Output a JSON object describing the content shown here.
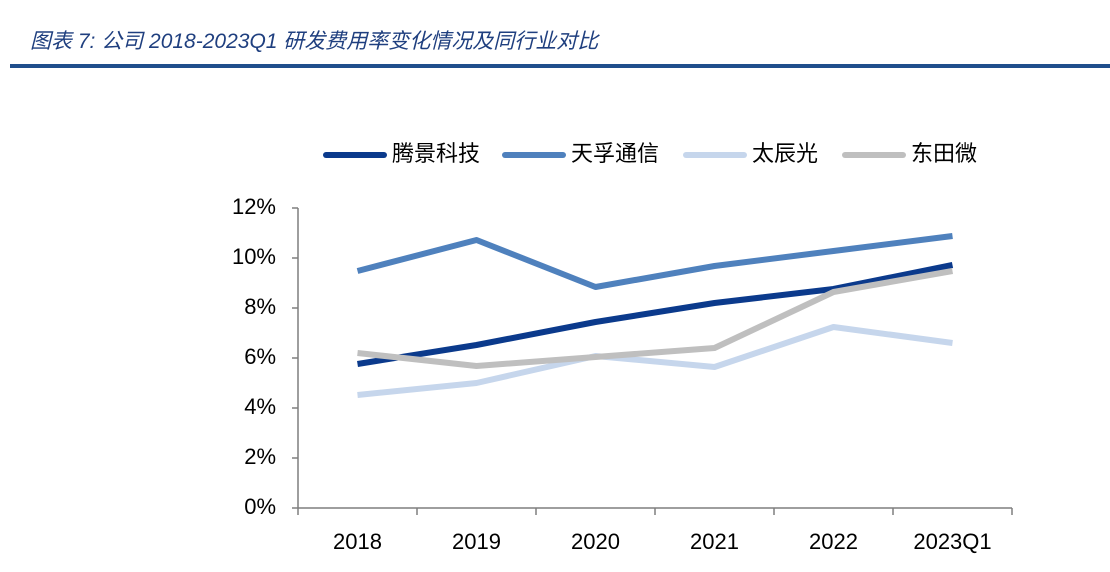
{
  "chart_data": {
    "type": "line",
    "title": "图表 7:  公司 2018-2023Q1 研发费用率变化情况及同行业对比",
    "categories": [
      "2018",
      "2019",
      "2020",
      "2021",
      "2022",
      "2023Q1"
    ],
    "series": [
      {
        "name": "腾景科技",
        "color": "#0b3a8c",
        "values": [
          5.76,
          6.52,
          7.44,
          8.2,
          8.76,
          9.72
        ]
      },
      {
        "name": "天孚通信",
        "color": "#4f81bd",
        "values": [
          9.48,
          10.72,
          8.84,
          9.68,
          10.28,
          10.88
        ]
      },
      {
        "name": "太辰光",
        "color": "#c6d6ec",
        "values": [
          4.52,
          5.0,
          6.08,
          5.64,
          7.24,
          6.6
        ]
      },
      {
        "name": "东田微",
        "color": "#bfbfbf",
        "values": [
          6.2,
          5.68,
          6.04,
          6.4,
          8.64,
          9.48
        ]
      }
    ],
    "ylim": [
      0,
      12
    ],
    "yticks": [
      {
        "value": 0,
        "label": "0%"
      },
      {
        "value": 2,
        "label": "2%"
      },
      {
        "value": 4,
        "label": "4%"
      },
      {
        "value": 6,
        "label": "6%"
      },
      {
        "value": 8,
        "label": "8%"
      },
      {
        "value": 10,
        "label": "10%"
      },
      {
        "value": 12,
        "label": "12%"
      }
    ],
    "legend": "top",
    "grid": false
  }
}
